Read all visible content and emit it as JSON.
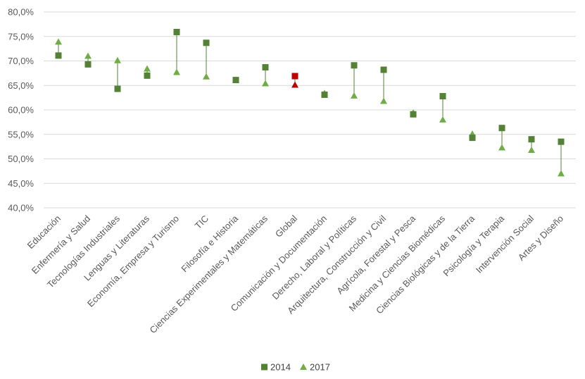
{
  "chart_data": {
    "type": "scatter",
    "categories": [
      "Educación",
      "Enfermería y Salud",
      "Tecnologías Industriales",
      "Lenguas y Literaturas",
      "Economía, Empresa y Turismo",
      "TIC",
      "Filosofía e Historia",
      "Ciencias Experimentales y Matemáticas",
      "Global",
      "Comunicación y Documentación",
      "Derecho, Laboral y Políticas",
      "Arquitectura, Construcción y Civil",
      "Agrícola, Forestal y Pesca",
      "Medicina y Ciencias Biomédicas",
      "Ciencias Biológicas y de la Tierra",
      "Psicología y Terapia",
      "Intervención Social",
      "Artes y Diseño"
    ],
    "series": [
      {
        "name": "2014",
        "marker": "square",
        "values": [
          71.1,
          69.3,
          64.3,
          67.0,
          75.9,
          73.7,
          66.1,
          68.7,
          66.9,
          63.1,
          69.1,
          68.2,
          59.1,
          62.8,
          54.3,
          56.3,
          54.0,
          53.5
        ]
      },
      {
        "name": "2017",
        "marker": "triangle",
        "values": [
          73.9,
          71.0,
          70.1,
          68.4,
          67.7,
          66.8,
          66.1,
          65.4,
          65.1,
          63.4,
          62.9,
          61.8,
          59.4,
          58.0,
          55.1,
          52.3,
          51.8,
          47.0
        ]
      }
    ],
    "highlight_category": "Global",
    "ylim": [
      40,
      80
    ],
    "yticks": [
      "40,0%",
      "45,0%",
      "50,0%",
      "55,0%",
      "60,0%",
      "65,0%",
      "70,0%",
      "75,0%",
      "80,0%"
    ],
    "grid": true,
    "legend": "bottom",
    "colors": {
      "series": "#548235",
      "triangle": "#70AD47",
      "highlight": "#C00000",
      "grid": "#D9D9D9",
      "connector": "#548235"
    }
  }
}
